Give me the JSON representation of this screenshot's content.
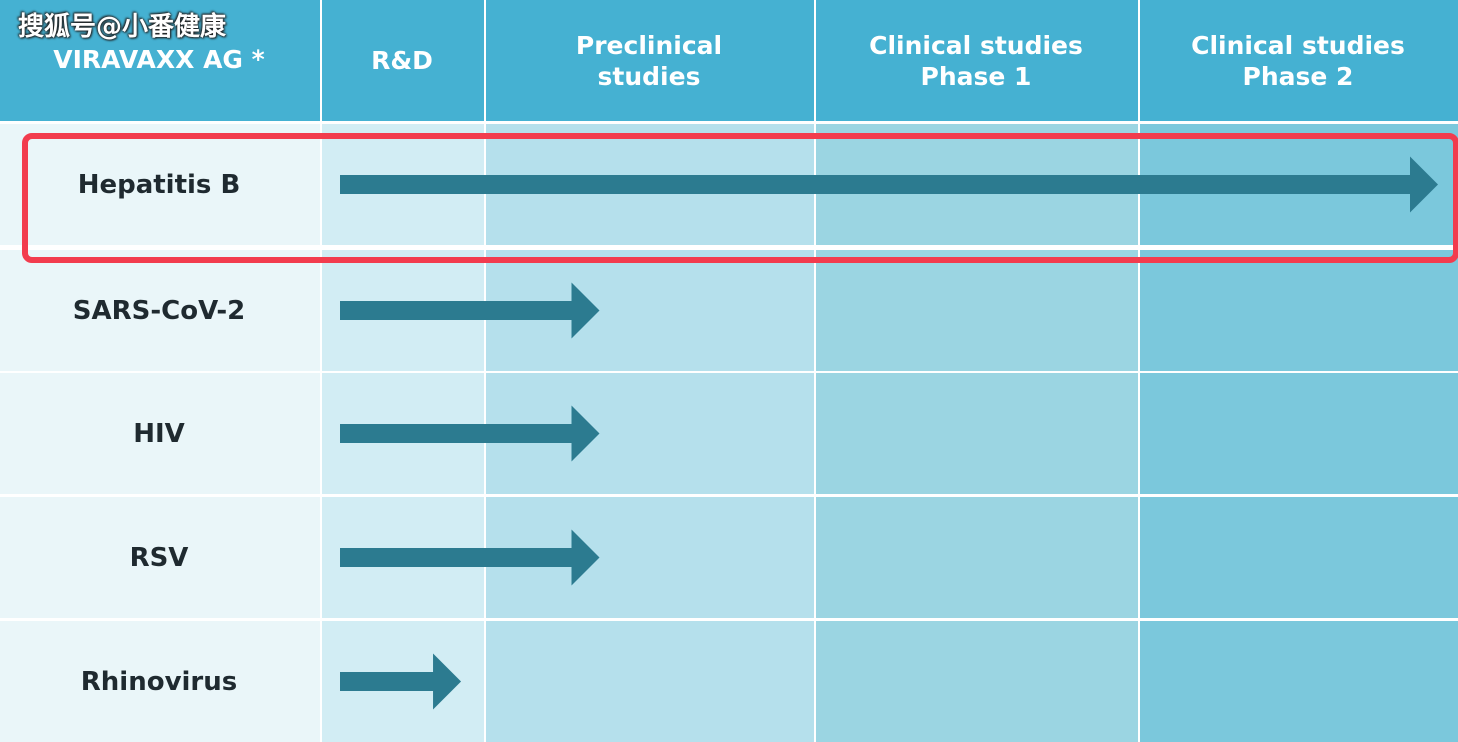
{
  "watermark": "搜狐号@小番健康",
  "company": "VIRAVAXX AG *",
  "phases": [
    {
      "lines": [
        "R&D"
      ]
    },
    {
      "lines": [
        "Preclinical",
        "studies"
      ]
    },
    {
      "lines": [
        "Clinical studies",
        "Phase 1"
      ]
    },
    {
      "lines": [
        "Clinical studies",
        "Phase 2"
      ]
    }
  ],
  "candidates": [
    {
      "name": "Hepatitis B",
      "progress_phases": 4.0,
      "highlighted": true
    },
    {
      "name": "SARS-CoV-2",
      "progress_phases": 1.35,
      "highlighted": false
    },
    {
      "name": "HIV",
      "progress_phases": 1.35,
      "highlighted": false
    },
    {
      "name": "RSV",
      "progress_phases": 1.35,
      "highlighted": false
    },
    {
      "name": "Rhinovirus",
      "progress_phases": 0.86,
      "highlighted": false
    }
  ],
  "colors": {
    "header": "#45b1d2",
    "label_column": "#eaf6f9",
    "rnd_column": "#d2edf4",
    "preclinical_column": "#b5e0ec",
    "phase1_column": "#9bd5e2",
    "phase2_column": "#7bc8dc",
    "arrow": "#2c7b90",
    "highlight_border": "#f23c4e"
  }
}
